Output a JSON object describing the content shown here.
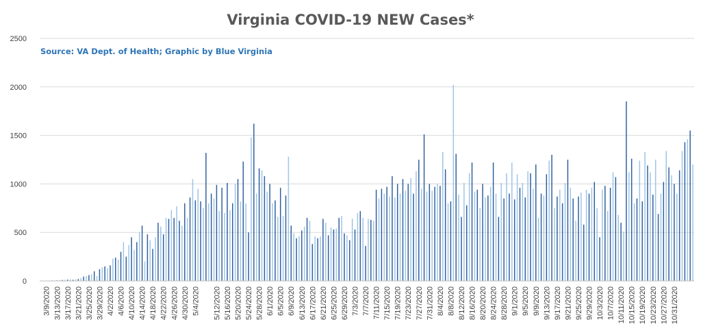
{
  "chart_data": {
    "type": "bar",
    "title": "Virginia COVID-19 NEW Cases*",
    "source": "Source: VA Dept. of Health; Graphic by Blue Virginia",
    "xlabel": "",
    "ylabel": "",
    "ylim": [
      0,
      2500
    ],
    "yticks": [
      0,
      500,
      1000,
      1500,
      2000,
      2500
    ],
    "grid": true,
    "legend": "none",
    "colors": {
      "bar_dark": "#2e5f9e",
      "bar_light": "#9dc3e6",
      "grid": "#d9d9d9",
      "title": "#595959",
      "source": "#2e75b6"
    },
    "x_labels": [
      "3/9/2020",
      "3/13/2020",
      "3/17/2020",
      "3/21/2020",
      "3/25/2020",
      "3/29/2020",
      "4/2/2020",
      "4/6/2020",
      "4/10/2020",
      "4/14/2020",
      "4/18/2020",
      "4/22/2020",
      "4/26/2020",
      "4/30/2020",
      "5/4/2020",
      "5/12/2020",
      "5/16/2020",
      "5/20/2020",
      "5/24/2020",
      "5/28/2020",
      "6/1/2020",
      "6/5/2020",
      "6/9/2020",
      "6/13/2020",
      "6/17/2020",
      "6/21/2020",
      "6/25/2020",
      "6/29/2020",
      "7/3/2020",
      "7/7/2020",
      "7/11/2020",
      "7/15/2020",
      "7/19/2020",
      "7/23/2020",
      "7/27/2020",
      "7/31/2020",
      "8/4/2020",
      "8/8/2020",
      "8/12/2020",
      "8/16/2020",
      "8/20/2020",
      "8/24/2020",
      "8/28/2020",
      "9/1/2020",
      "9/5/2020",
      "9/9/2020",
      "9/13/2020",
      "9/17/2020",
      "9/21/2020",
      "9/25/2020",
      "9/29/2020",
      "10/3/2020",
      "10/7/2020",
      "10/11/2020",
      "10/15/2020",
      "10/19/2020",
      "10/23/2020",
      "10/27/2020",
      "10/31/2020"
    ],
    "start_date": "3/7/2020",
    "values": [
      2,
      3,
      3,
      4,
      5,
      5,
      6,
      8,
      10,
      12,
      14,
      16,
      12,
      17,
      20,
      30,
      45,
      50,
      60,
      70,
      100,
      50,
      120,
      140,
      150,
      130,
      160,
      230,
      240,
      220,
      300,
      400,
      250,
      370,
      450,
      320,
      400,
      500,
      570,
      200,
      480,
      420,
      330,
      450,
      600,
      560,
      480,
      650,
      640,
      730,
      650,
      770,
      620,
      570,
      800,
      650,
      860,
      1050,
      830,
      950,
      820,
      750,
      1320,
      800,
      900,
      850,
      990,
      720,
      960,
      700,
      1010,
      730,
      800,
      1000,
      1050,
      820,
      1230,
      800,
      500,
      1480,
      1620,
      900,
      1160,
      1140,
      1080,
      920,
      1000,
      800,
      830,
      660,
      960,
      670,
      880,
      1280,
      570,
      490,
      440,
      460,
      520,
      560,
      650,
      620,
      380,
      460,
      440,
      460,
      640,
      600,
      470,
      550,
      530,
      540,
      650,
      670,
      490,
      470,
      420,
      640,
      530,
      700,
      720,
      650,
      360,
      640,
      630,
      620,
      940,
      850,
      950,
      900,
      970,
      870,
      1080,
      860,
      1000,
      900,
      1050,
      930,
      1000,
      1060,
      900,
      1130,
      1250,
      950,
      1510,
      920,
      1000,
      930,
      970,
      1000,
      980,
      1330,
      1150,
      800,
      820,
      2020,
      1310,
      890,
      660,
      1010,
      780,
      1110,
      1220,
      920,
      940,
      750,
      1000,
      860,
      880,
      970,
      1220,
      900,
      660,
      1010,
      850,
      1110,
      900,
      1220,
      840,
      1100,
      960,
      1010,
      860,
      1130,
      1110,
      950,
      1200,
      650,
      900,
      880,
      1100,
      1240,
      1300,
      750,
      870,
      940,
      800,
      1010,
      1250,
      960,
      850,
      620,
      870,
      910,
      580,
      940,
      900,
      960,
      1020,
      750,
      450,
      940,
      980,
      720,
      960,
      1120,
      1070,
      680,
      600,
      510,
      1850,
      1120,
      1260,
      800,
      850,
      1240,
      820,
      1330,
      1190,
      1120,
      890,
      1250,
      690,
      900,
      1020,
      1340,
      1170,
      1090,
      1000,
      900,
      1140,
      1340,
      1430,
      1460,
      1550,
      1200
    ]
  }
}
